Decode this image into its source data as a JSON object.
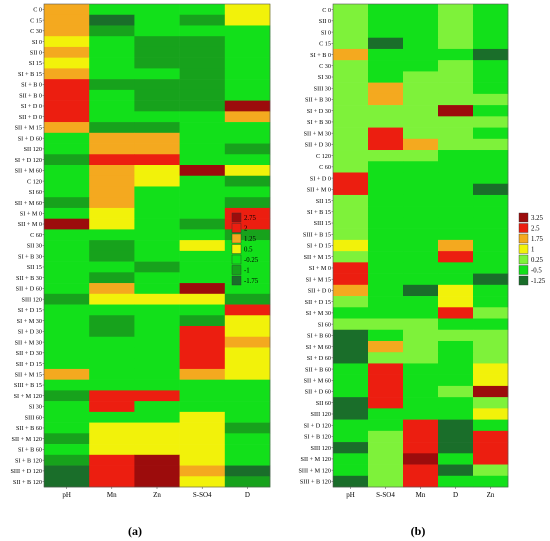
{
  "colors": {
    "dark_green": "#1a6e2a",
    "mid_green": "#17a21c",
    "green": "#12e01a",
    "light_green": "#7ef23a",
    "yellow": "#f2f20a",
    "orange": "#f4a91f",
    "red": "#ec1e10",
    "dark_red": "#9c0c0c"
  },
  "chart_data": [
    {
      "type": "heatmap",
      "panel_label": "(a)",
      "columns": [
        "pH",
        "Mn",
        "Zn",
        "S-SO4",
        "D"
      ],
      "rows": [
        "C 0",
        "C 15",
        "C 30",
        "SI 0",
        "SII 0",
        "SI 15",
        "SI + B 15",
        "SI + B 0",
        "SII + B 0",
        "SI + D 0",
        "SII + D 0",
        "SII + M 15",
        "SI + D 60",
        "SII 120",
        "SI + D 120",
        "SII + M 60",
        "C 120",
        "SI 60",
        "SII + M 60",
        "SI + M 0",
        "SII + M 0",
        "C 60",
        "SII 30",
        "SI + B 30",
        "SII 15",
        "SII + B 30",
        "SII + D 60",
        "SIII 120",
        "SI + D 15",
        "SI + M 30",
        "SI + D 30",
        "SII + M 30",
        "SII + D 30",
        "SII + D 15",
        "SII + M 15",
        "SIII + B 15",
        "SI + M 120",
        "SI 30",
        "SIII 60",
        "SII + B 60",
        "SII + M 120",
        "SI + B 60",
        "SI + B 120",
        "SIII + D 120",
        "SII + B 120"
      ],
      "values": [
        [
          1.25,
          -0.25,
          -0.5,
          -0.5,
          0.5
        ],
        [
          1.25,
          -1.5,
          -0.5,
          -1,
          0.25
        ],
        [
          1.25,
          -1,
          -0.5,
          -0.5,
          -0.25
        ],
        [
          0.5,
          -0.25,
          -0.75,
          -1,
          -0.25
        ],
        [
          1.25,
          -0.5,
          -0.75,
          -0.75,
          -0.5
        ],
        [
          0.25,
          -0.5,
          -0.75,
          -0.75,
          -0.5
        ],
        [
          1.25,
          -0.5,
          -0.5,
          -0.75,
          -0.5
        ],
        [
          1.75,
          -0.75,
          -0.75,
          -1,
          -0.5
        ],
        [
          1.75,
          -0.5,
          -1,
          -1,
          -0.5
        ],
        [
          2.25,
          -0.5,
          -0.75,
          -0.75,
          2.75
        ],
        [
          2.25,
          -0.5,
          -0.5,
          -0.5,
          1.25
        ],
        [
          1.25,
          -0.75,
          -1,
          -0.5,
          -0.5
        ],
        [
          -0.25,
          1.25,
          1.25,
          -0.5,
          -0.5
        ],
        [
          -0.5,
          1.25,
          1.25,
          -0.5,
          -0.75
        ],
        [
          -0.75,
          1.75,
          2,
          -0.5,
          -0.5
        ],
        [
          -0.5,
          1.25,
          0.5,
          2.75,
          0.5
        ],
        [
          -0.5,
          1.25,
          0.5,
          -0.5,
          -0.75
        ],
        [
          -0.25,
          1.25,
          -0.25,
          0,
          -0.5
        ],
        [
          -0.75,
          1.25,
          -0.5,
          0,
          -0.75
        ],
        [
          -0.5,
          0.75,
          -0.5,
          -0.5,
          2
        ],
        [
          2.75,
          0.25,
          -0.5,
          -0.75,
          2
        ],
        [
          -0.5,
          -0.25,
          -0.5,
          -0.25,
          -0.75
        ],
        [
          -0.5,
          -1.25,
          -0.5,
          0.5,
          -0.5
        ],
        [
          -0.5,
          -0.75,
          -0.25,
          -0.25,
          -0.5
        ],
        [
          -0.25,
          -0.5,
          -0.75,
          -0.25,
          -0.25
        ],
        [
          -0.5,
          -0.75,
          -0.5,
          -0.25,
          -0.5
        ],
        [
          -0.5,
          1.25,
          -0.5,
          2.75,
          -0.5
        ],
        [
          -1.25,
          0.75,
          0.75,
          0.75,
          -1
        ],
        [
          -0.5,
          -0.25,
          -0.5,
          -0.5,
          2
        ],
        [
          -0.5,
          -0.75,
          -0.5,
          -0.75,
          0.5
        ],
        [
          -0.25,
          -0.75,
          -0.5,
          2,
          0.5
        ],
        [
          -0.5,
          -0.5,
          -0.25,
          2.25,
          1.25
        ],
        [
          -0.25,
          -0.5,
          -0.5,
          2,
          0.5
        ],
        [
          -0.25,
          -0.25,
          -0.25,
          2.25,
          0.25
        ],
        [
          1.25,
          -0.5,
          -0.5,
          1.25,
          0.25
        ],
        [
          -0.5,
          -0.5,
          -0.5,
          0,
          -0.5
        ],
        [
          -0.75,
          2,
          2,
          0,
          -0.5
        ],
        [
          -0.5,
          2,
          -0.25,
          0,
          -0.5
        ],
        [
          -0.5,
          -0.5,
          -0.5,
          0.25,
          -0.5
        ],
        [
          -0.5,
          0.75,
          0.75,
          0.25,
          -0.75
        ],
        [
          -0.75,
          0.75,
          0.75,
          0.25,
          -0.5
        ],
        [
          -0.5,
          0.75,
          0.75,
          0.25,
          -0.5
        ],
        [
          -0.75,
          2.25,
          2.75,
          0.25,
          -0.5
        ],
        [
          -1.75,
          2,
          2.75,
          1.25,
          -1.5
        ],
        [
          -1.75,
          2.25,
          2.75,
          0.5,
          -1.25
        ]
      ],
      "legend": [
        {
          "label": "2.75",
          "color": "#9c0c0c"
        },
        {
          "label": "2",
          "color": "#ec1e10"
        },
        {
          "label": "1.25",
          "color": "#f4a91f"
        },
        {
          "label": "0.5",
          "color": "#f2f20a"
        },
        {
          "label": "-0.25",
          "color": "#12e01a"
        },
        {
          "label": "-1",
          "color": "#17a21c"
        },
        {
          "label": "-1.75",
          "color": "#1a6e2a"
        }
      ],
      "thresholds": [
        2.375,
        1.625,
        0.875,
        0.125,
        -0.625,
        -1.375
      ]
    },
    {
      "type": "heatmap",
      "panel_label": "(b)",
      "columns": [
        "pH",
        "S-SO4",
        "Mn",
        "D",
        "Zn"
      ],
      "rows": [
        "C 0",
        "SII 0",
        "SI 0",
        "C 15",
        "SI + B 0",
        "C 30",
        "SI 30",
        "SIII 30",
        "SII + B 30",
        "SI + D 30",
        "SI + B 30",
        "SII + M 30",
        "SII + D 30",
        "C 120",
        "C 60",
        "SI + D 0",
        "SII + M 0",
        "SII 15",
        "SI + B 15",
        "SIII 15",
        "SIII + B 15",
        "SI + D 15",
        "SII + M 15",
        "SI + M 0",
        "SI + M 15",
        "SII + D 0",
        "SII + D 15",
        "SI + M 30",
        "SI 60",
        "SI + B 60",
        "SI + M 60",
        "SI + D 60",
        "SII + B 60",
        "SII + M 60",
        "SII + D 60",
        "SII 60",
        "SIII 120",
        "SI + D 120",
        "SI + B 120",
        "SIII 120",
        "SII + M 120",
        "SIII + M 120",
        "SIII + B 120"
      ],
      "values": [
        [
          0.5,
          -0.75,
          -0.75,
          0.5,
          -0.5
        ],
        [
          0.5,
          -0.75,
          -0.75,
          0.5,
          -0.75
        ],
        [
          0.5,
          -0.75,
          -0.5,
          0.25,
          -0.75
        ],
        [
          0.5,
          -1,
          -0.75,
          0.5,
          -0.75
        ],
        [
          1.75,
          -0.75,
          -0.75,
          -0.75,
          -1
        ],
        [
          0.25,
          -0.5,
          -0.5,
          0.25,
          -0.5
        ],
        [
          0.5,
          -0.25,
          0.25,
          0.25,
          -0.25
        ],
        [
          0.5,
          1.75,
          0.5,
          0.25,
          -0.5
        ],
        [
          0.5,
          1.75,
          0.5,
          0.25,
          0.25
        ],
        [
          0.5,
          0.25,
          0.5,
          3.25,
          -0.25
        ],
        [
          0.5,
          0.25,
          0.5,
          0.25,
          0.25
        ],
        [
          0.5,
          2.5,
          0.5,
          0.25,
          -0.25
        ],
        [
          0.5,
          2.5,
          1.75,
          0.5,
          0.5
        ],
        [
          0.5,
          0.25,
          0.5,
          -0.75,
          -0.5
        ],
        [
          0.5,
          -0.75,
          -0.75,
          -0.75,
          -0.75
        ],
        [
          2.5,
          -0.5,
          -0.5,
          -0.5,
          -0.5
        ],
        [
          2.5,
          -0.5,
          -0.75,
          -0.5,
          -1.75
        ],
        [
          0.5,
          -0.5,
          -0.75,
          -0.5,
          -0.5
        ],
        [
          0.5,
          -0.75,
          -0.75,
          -0.5,
          -0.75
        ],
        [
          0.5,
          -0.75,
          -0.75,
          -0.5,
          -0.75
        ],
        [
          0.5,
          -0.5,
          -0.5,
          -0.75,
          -0.75
        ],
        [
          1.25,
          -0.5,
          -0.5,
          1.75,
          -0.75
        ],
        [
          0.5,
          -0.75,
          -0.75,
          2.5,
          -0.75
        ],
        [
          2.5,
          -0.5,
          -0.5,
          -0.5,
          -0.5
        ],
        [
          2.5,
          -0.5,
          -0.5,
          -0.5,
          -1.25
        ],
        [
          1.75,
          -0.5,
          -1.5,
          1.25,
          -0.5
        ],
        [
          0.5,
          -0.5,
          -0.5,
          1.25,
          -0.5
        ],
        [
          -0.5,
          -0.5,
          -0.5,
          2.5,
          0.5
        ],
        [
          0.5,
          0.5,
          0.5,
          -0.5,
          -0.5
        ],
        [
          -1,
          -0.25,
          0.25,
          0.25,
          0.5
        ],
        [
          -1,
          1.75,
          0.25,
          -0.5,
          0.5
        ],
        [
          -1,
          0.5,
          0.25,
          -0.5,
          0.5
        ],
        [
          -0.5,
          2.5,
          -0.75,
          -0.75,
          1
        ],
        [
          -0.5,
          2.5,
          -0.5,
          -0.5,
          1
        ],
        [
          -0.5,
          2.5,
          -0.5,
          0.5,
          3.25
        ],
        [
          -1,
          2.5,
          -0.75,
          -0.5,
          0.5
        ],
        [
          -1.25,
          -0.5,
          -0.5,
          -0.75,
          1
        ],
        [
          -0.5,
          -0.5,
          2.5,
          -1.25,
          -0.5
        ],
        [
          -0.5,
          0.5,
          2.5,
          -1.25,
          2.5
        ],
        [
          -1.75,
          0.5,
          2.5,
          -1.25,
          2.5
        ],
        [
          -0.5,
          0.5,
          3.25,
          -0.5,
          2.5
        ],
        [
          -0.5,
          0.5,
          2.5,
          -1.25,
          0.25
        ],
        [
          -1.25,
          0.5,
          2.5,
          -0.5,
          -0.75
        ]
      ],
      "legend": [
        {
          "label": "3.25",
          "color": "#9c0c0c"
        },
        {
          "label": "2.5",
          "color": "#ec1e10"
        },
        {
          "label": "1.75",
          "color": "#f4a91f"
        },
        {
          "label": "1",
          "color": "#f2f20a"
        },
        {
          "label": "0.25",
          "color": "#7ef23a"
        },
        {
          "label": "-0.5",
          "color": "#12e01a"
        },
        {
          "label": "-1.25",
          "color": "#1a6e2a"
        }
      ],
      "thresholds": [
        2.875,
        2.125,
        1.375,
        0.625,
        -0.125,
        -0.875
      ]
    }
  ]
}
